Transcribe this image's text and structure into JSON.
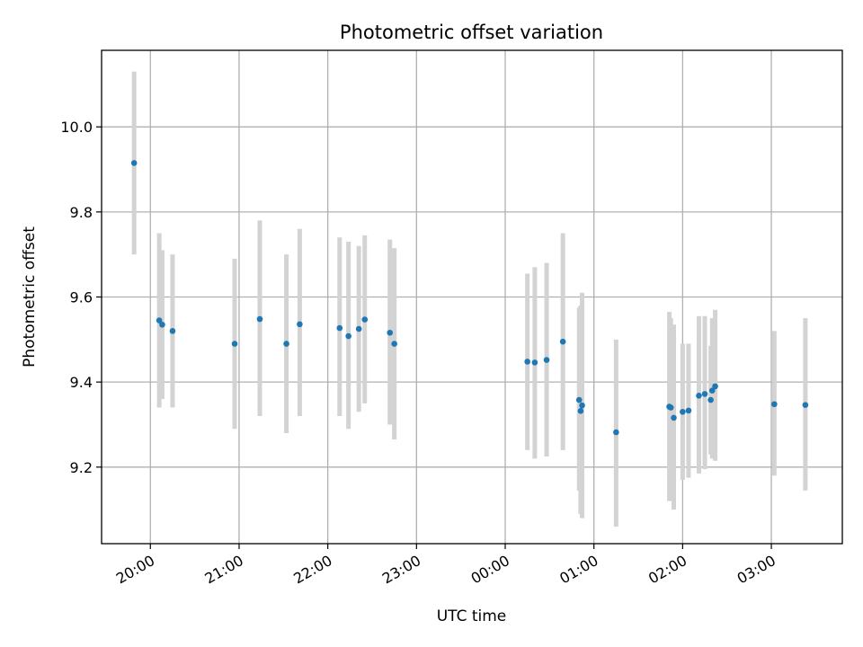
{
  "chart_data": {
    "type": "scatter",
    "title": "Photometric offset variation",
    "xlabel": "UTC time",
    "ylabel": "Photometric offset",
    "x_axis": {
      "type": "time",
      "range": [
        "19:27",
        "03:48"
      ],
      "ticks": [
        "20:00",
        "21:00",
        "22:00",
        "23:00",
        "00:00",
        "01:00",
        "02:00",
        "03:00"
      ]
    },
    "y_axis": {
      "range": [
        9.02,
        10.18
      ],
      "ticks": [
        "9.2",
        "9.4",
        "9.6",
        "9.8",
        "10.0"
      ]
    },
    "grid": true,
    "series": [
      {
        "marker_color": "#1f77b4",
        "errorbar_color": "#d3d3d3",
        "points": [
          {
            "t": "19:49",
            "y": 9.915,
            "lo": 9.7,
            "hi": 10.13
          },
          {
            "t": "20:06",
            "y": 9.545,
            "lo": 9.34,
            "hi": 9.75
          },
          {
            "t": "20:08",
            "y": 9.535,
            "lo": 9.36,
            "hi": 9.71
          },
          {
            "t": "20:15",
            "y": 9.52,
            "lo": 9.34,
            "hi": 9.7
          },
          {
            "t": "20:57",
            "y": 9.49,
            "lo": 9.29,
            "hi": 9.69
          },
          {
            "t": "21:14",
            "y": 9.548,
            "lo": 9.32,
            "hi": 9.78
          },
          {
            "t": "21:32",
            "y": 9.49,
            "lo": 9.28,
            "hi": 9.7
          },
          {
            "t": "21:41",
            "y": 9.536,
            "lo": 9.32,
            "hi": 9.76
          },
          {
            "t": "22:08",
            "y": 9.527,
            "lo": 9.32,
            "hi": 9.74
          },
          {
            "t": "22:14",
            "y": 9.508,
            "lo": 9.29,
            "hi": 9.73
          },
          {
            "t": "22:21",
            "y": 9.525,
            "lo": 9.33,
            "hi": 9.72
          },
          {
            "t": "22:25",
            "y": 9.547,
            "lo": 9.35,
            "hi": 9.745
          },
          {
            "t": "22:42",
            "y": 9.516,
            "lo": 9.3,
            "hi": 9.735
          },
          {
            "t": "22:45",
            "y": 9.49,
            "lo": 9.265,
            "hi": 9.715
          },
          {
            "t": "00:15",
            "y": 9.448,
            "lo": 9.24,
            "hi": 9.655
          },
          {
            "t": "00:20",
            "y": 9.446,
            "lo": 9.22,
            "hi": 9.67
          },
          {
            "t": "00:28",
            "y": 9.452,
            "lo": 9.225,
            "hi": 9.68
          },
          {
            "t": "00:39",
            "y": 9.495,
            "lo": 9.24,
            "hi": 9.75
          },
          {
            "t": "00:50",
            "y": 9.358,
            "lo": 9.145,
            "hi": 9.575
          },
          {
            "t": "00:51",
            "y": 9.332,
            "lo": 9.09,
            "hi": 9.58
          },
          {
            "t": "00:52",
            "y": 9.345,
            "lo": 9.08,
            "hi": 9.61
          },
          {
            "t": "01:15",
            "y": 9.282,
            "lo": 9.06,
            "hi": 9.5
          },
          {
            "t": "01:51",
            "y": 9.342,
            "lo": 9.12,
            "hi": 9.565
          },
          {
            "t": "01:52",
            "y": 9.34,
            "lo": 9.125,
            "hi": 9.55
          },
          {
            "t": "01:54",
            "y": 9.316,
            "lo": 9.1,
            "hi": 9.535
          },
          {
            "t": "02:00",
            "y": 9.33,
            "lo": 9.17,
            "hi": 9.49
          },
          {
            "t": "02:04",
            "y": 9.333,
            "lo": 9.175,
            "hi": 9.49
          },
          {
            "t": "02:11",
            "y": 9.368,
            "lo": 9.185,
            "hi": 9.555
          },
          {
            "t": "02:15",
            "y": 9.372,
            "lo": 9.195,
            "hi": 9.555
          },
          {
            "t": "02:19",
            "y": 9.358,
            "lo": 9.23,
            "hi": 9.485
          },
          {
            "t": "02:20",
            "y": 9.38,
            "lo": 9.22,
            "hi": 9.55
          },
          {
            "t": "02:22",
            "y": 9.39,
            "lo": 9.215,
            "hi": 9.57
          },
          {
            "t": "03:02",
            "y": 9.348,
            "lo": 9.18,
            "hi": 9.52
          },
          {
            "t": "03:23",
            "y": 9.346,
            "lo": 9.145,
            "hi": 9.55
          }
        ]
      }
    ]
  }
}
